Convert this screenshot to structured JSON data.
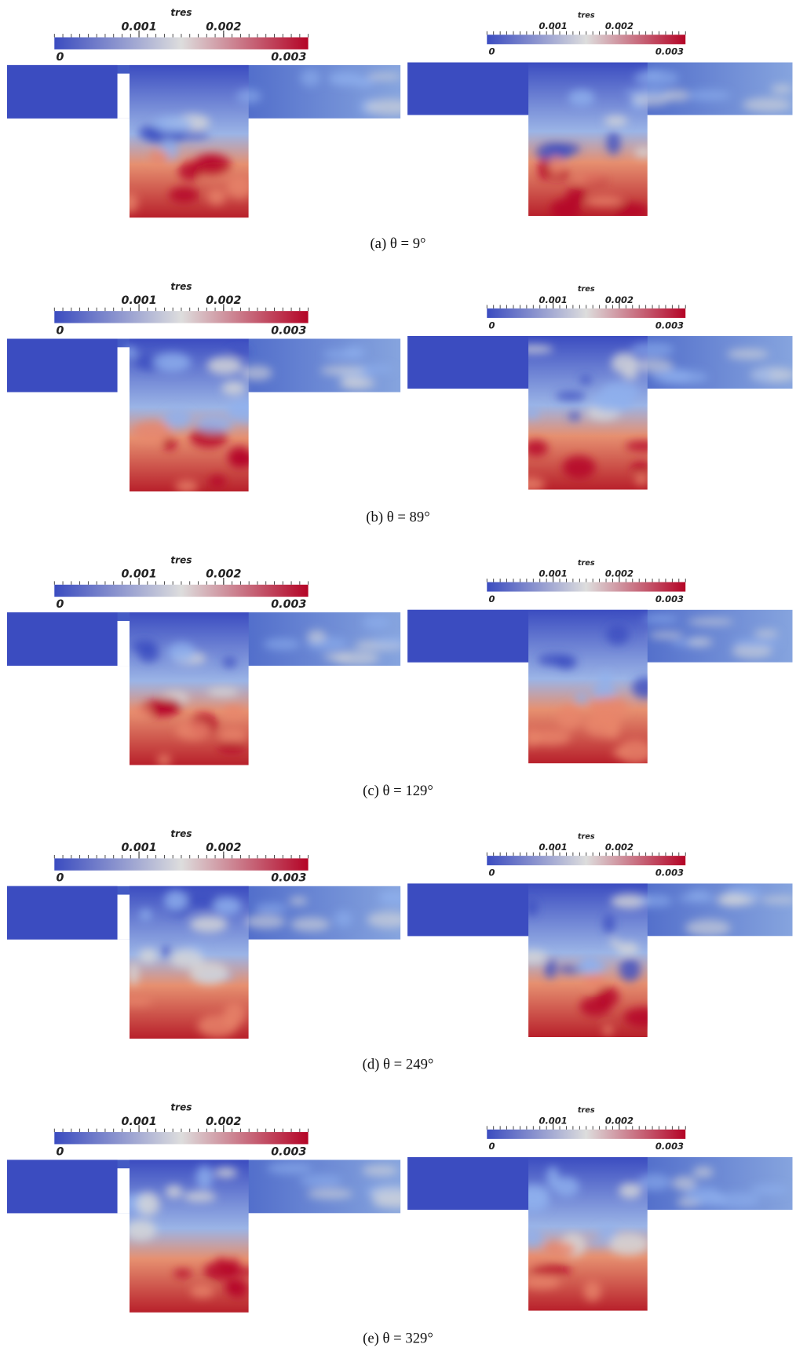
{
  "colorbar": {
    "title": "tres",
    "range": [
      0,
      0.003
    ],
    "ticks": [
      0.001,
      0.002
    ]
  },
  "panels": [
    {
      "caption": "(a) θ = 9°"
    },
    {
      "caption": "(b) θ = 89°"
    },
    {
      "caption": "(c) θ = 129°"
    },
    {
      "caption": "(d) θ = 249°"
    },
    {
      "caption": "(e) θ = 329°"
    }
  ]
}
